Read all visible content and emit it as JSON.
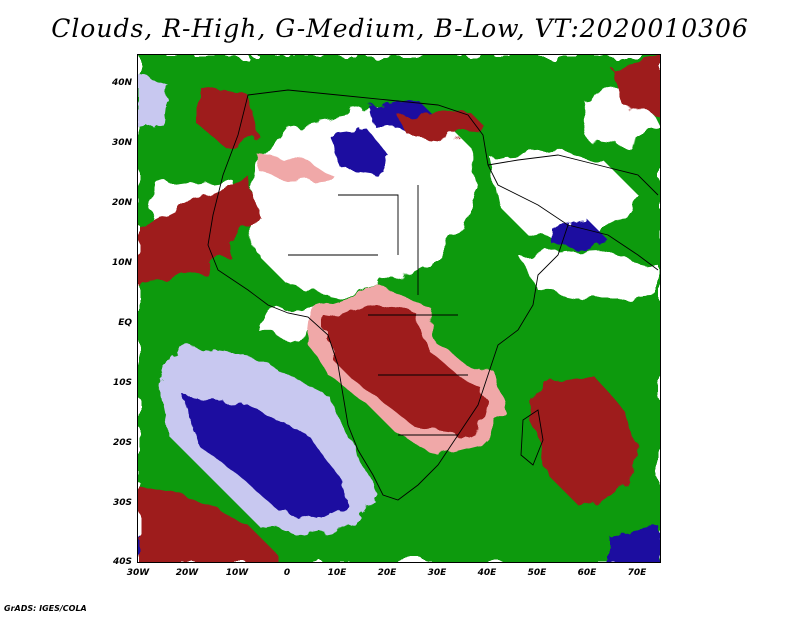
{
  "title": "Clouds, R-High, G-Medium, B-Low, VT:2020010306",
  "credit": "GrADS: IGES/COLA",
  "legend_colors": {
    "high": "#9e1a1a",
    "high_light": "#f0a8a8",
    "medium": "#119a11",
    "low": "#1a0fa0",
    "low_light": "#c8c8f0",
    "land_clear": "#ffffff",
    "coastline": "#000000"
  },
  "axes": {
    "lat_labels": [
      "40N",
      "30N",
      "20N",
      "10N",
      "EQ",
      "10S",
      "20S",
      "30S",
      "40S"
    ],
    "lon_labels": [
      "30W",
      "20W",
      "10W",
      "0",
      "10E",
      "20E",
      "30E",
      "40E",
      "50E",
      "60E",
      "70E"
    ],
    "lat_range": [
      -40,
      44
    ],
    "lon_range": [
      -30,
      75
    ]
  }
}
